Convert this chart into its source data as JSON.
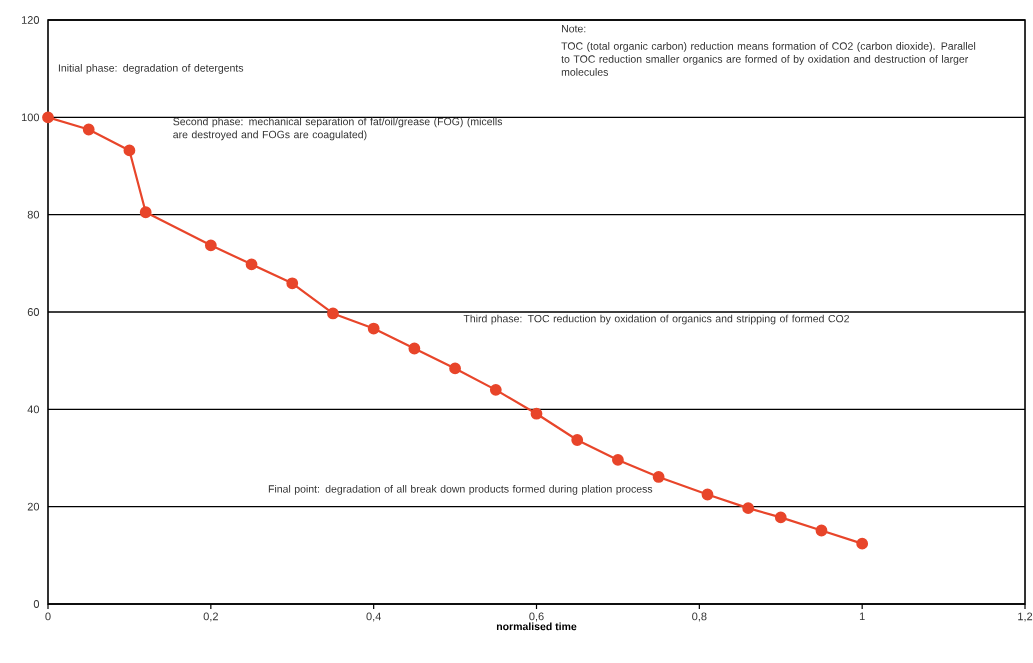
{
  "chart_data": {
    "type": "line",
    "xlabel": "**normalised time**",
    "x": [
      0,
      0.05,
      0.1,
      0.12,
      0.2,
      0.25,
      0.3,
      0.35,
      0.4,
      0.45,
      0.5,
      0.55,
      0.6,
      0.65,
      0.7,
      0.75,
      0.81,
      0.86,
      0.9,
      0.95,
      1.0
    ],
    "values": [
      100,
      97.5,
      93.2,
      80.5,
      73.7,
      69.8,
      65.9,
      59.7,
      56.6,
      52.5,
      48.4,
      44.0,
      39.1,
      33.7,
      29.6,
      26.1,
      22.5,
      19.7,
      17.8,
      15.1,
      12.4
    ],
    "color": "#e8452a",
    "marker": "circle",
    "line_style": "solid",
    "grid": "y",
    "xlim": [
      0,
      1.2
    ],
    "ylim": [
      0,
      120
    ],
    "xticks": [
      0,
      {
        "value": 0.2,
        "label": "0,2"
      },
      {
        "value": 0.4,
        "label": "0,4"
      },
      {
        "value": 0.6,
        "label": "0,6"
      },
      {
        "value": 0.8,
        "label": "0,8"
      },
      1,
      {
        "value": 1.2,
        "label": "1,2"
      }
    ],
    "yticks": [
      0,
      20,
      40,
      60,
      80,
      100,
      120
    ],
    "annotations": [
      "Initial phase: degradation of detergents",
      "Second phase: mechanical separation of fat/oil/grease (FOG) (micells are destroyed and FOGs are coagulated)",
      "Third phase: TOC reduction by oxidation of organics and stripping of formed CO2",
      "Final point: degradation of all break down products formed during plation process",
      "Note:",
      "TOC (total organic carbon) reduction means formation of CO2 (carbon dioxide). Parallel to TOC reduction smaller organics are formed of  by oxidation and destruction of larger molecules"
    ]
  }
}
